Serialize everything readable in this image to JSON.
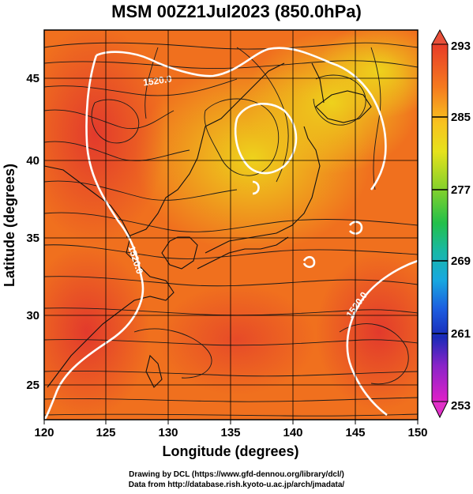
{
  "title": "MSM 00Z21Jul2023 (850.0hPa)",
  "x_axis": {
    "label": "Longitude (degrees)",
    "ticks": [
      "120",
      "125",
      "130",
      "135",
      "140",
      "145",
      "150"
    ]
  },
  "y_axis": {
    "label": "Latitude  (degrees)",
    "ticks": [
      "25",
      "30",
      "35",
      "40",
      "45"
    ]
  },
  "colorbar": {
    "labels": [
      "293",
      "285",
      "277",
      "269",
      "261",
      "253"
    ]
  },
  "contour_labels": [
    "1520.0",
    "1520.0",
    "1520.0"
  ],
  "credits": {
    "line1": "Drawing by DCL (https://www.gfd-dennou.org/library/dcl/)",
    "line2": "Data from http://database.rish.kyoto-u.ac.jp/arch/jmadata/"
  },
  "colors": {
    "warm": "#e8402a",
    "mid": "#f07a1c",
    "cool": "#f5b41e",
    "cold": "#e8d81c"
  }
}
